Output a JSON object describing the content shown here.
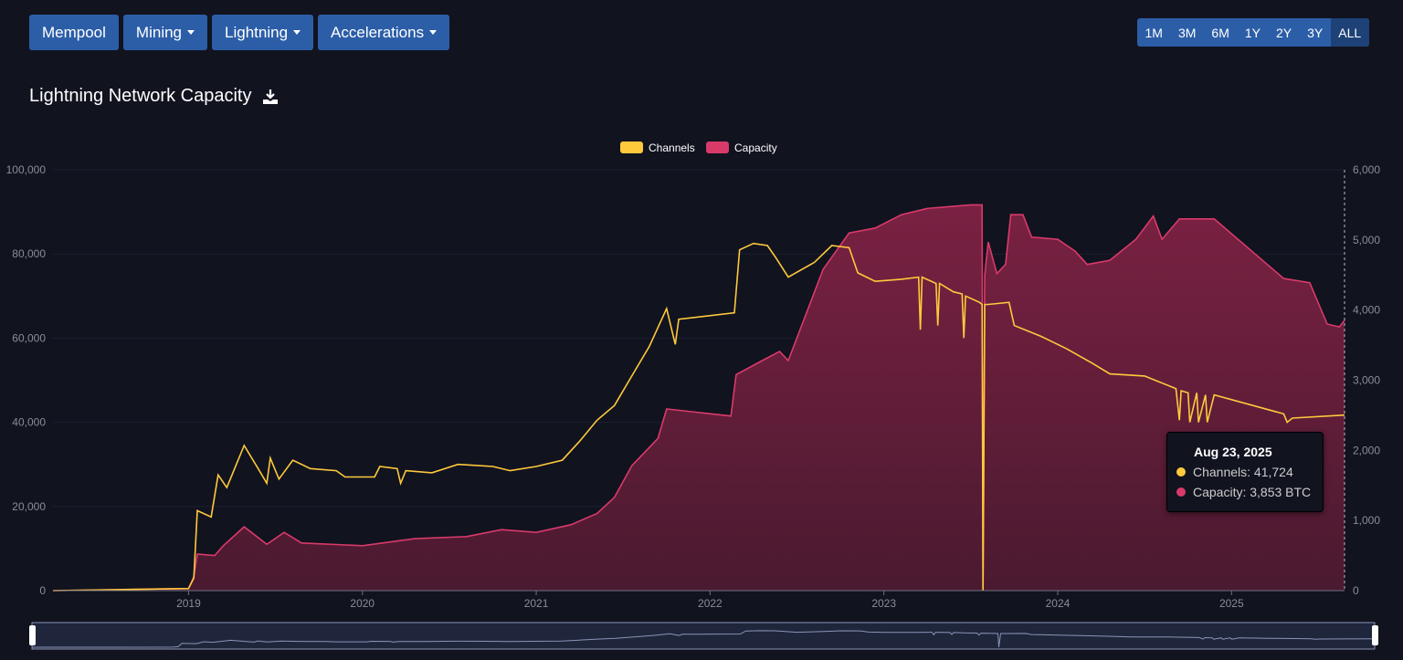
{
  "nav": {
    "buttons": [
      {
        "label": "Mempool",
        "dropdown": false
      },
      {
        "label": "Mining",
        "dropdown": true
      },
      {
        "label": "Lightning",
        "dropdown": true
      },
      {
        "label": "Accelerations",
        "dropdown": true
      }
    ]
  },
  "range": {
    "options": [
      "1M",
      "3M",
      "6M",
      "1Y",
      "2Y",
      "3Y",
      "ALL"
    ],
    "active": "ALL"
  },
  "title": "Lightning Network Capacity",
  "tooltip": {
    "date": "Aug 23, 2025",
    "channels": "Channels: 41,724",
    "capacity": "Capacity: 3,853 BTC"
  },
  "colors": {
    "channels": "#ffc93c",
    "capacity": "#d93a6a",
    "area_top": "#7a2142",
    "area_bottom": "#4a1a30"
  },
  "chart_data": {
    "type": "line",
    "title": "Lightning Network Capacity",
    "legend": [
      "Channels",
      "Capacity"
    ],
    "legend_position": "top-center",
    "xlim": [
      2018.22,
      2025.65
    ],
    "x_ticks": [
      "2019",
      "2020",
      "2021",
      "2022",
      "2023",
      "2024",
      "2025"
    ],
    "y_left": {
      "ticks": [
        "0",
        "20,000",
        "40,000",
        "60,000",
        "80,000",
        "100,000"
      ],
      "ylim": [
        0,
        100000
      ]
    },
    "y_right": {
      "ticks": [
        "0",
        "1,000",
        "2,000",
        "3,000",
        "4,000",
        "5,000",
        "6,000"
      ],
      "ylim": [
        0,
        6000
      ]
    },
    "series": [
      {
        "name": "Channels",
        "axis": "left",
        "type": "line",
        "x": [
          2018.22,
          2019.0,
          2019.03,
          2019.05,
          2019.13,
          2019.17,
          2019.22,
          2019.32,
          2019.4,
          2019.45,
          2019.47,
          2019.52,
          2019.6,
          2019.7,
          2019.85,
          2019.9,
          2020.07,
          2020.1,
          2020.2,
          2020.22,
          2020.25,
          2020.4,
          2020.55,
          2020.75,
          2020.85,
          2021.0,
          2021.15,
          2021.25,
          2021.35,
          2021.45,
          2021.55,
          2021.65,
          2021.75,
          2021.8,
          2021.82,
          2022.14,
          2022.17,
          2022.25,
          2022.33,
          2022.38,
          2022.45,
          2022.6,
          2022.7,
          2022.8,
          2022.85,
          2022.95,
          2023.1,
          2023.2,
          2023.21,
          2023.22,
          2023.3,
          2023.31,
          2023.32,
          2023.4,
          2023.45,
          2023.46,
          2023.47,
          2023.55,
          2023.565,
          2023.57,
          2023.58,
          2023.6,
          2023.72,
          2023.75,
          2023.9,
          2024.05,
          2024.2,
          2024.3,
          2024.5,
          2024.68,
          2024.7,
          2024.71,
          2024.75,
          2024.76,
          2024.8,
          2024.81,
          2024.85,
          2024.86,
          2024.9,
          2025.3,
          2025.32,
          2025.35,
          2025.65
        ],
        "values": [
          0,
          500,
          3000,
          19000,
          17500,
          27500,
          24500,
          34500,
          29000,
          25500,
          31500,
          26500,
          31000,
          29000,
          28500,
          27000,
          27000,
          29500,
          29000,
          25500,
          28500,
          28000,
          30000,
          29500,
          28500,
          29500,
          31000,
          35500,
          40500,
          44000,
          51000,
          58000,
          67000,
          58500,
          64500,
          66000,
          81000,
          82500,
          82000,
          79000,
          74500,
          78000,
          82000,
          81500,
          75500,
          73500,
          74000,
          74500,
          62000,
          74500,
          73000,
          63000,
          73000,
          71000,
          70500,
          60000,
          70000,
          68500,
          68000,
          0,
          68000,
          68000,
          68500,
          63000,
          60500,
          57500,
          54000,
          51500,
          51000,
          48000,
          40500,
          47500,
          47000,
          40000,
          47000,
          40000,
          46500,
          40000,
          46500,
          42000,
          40000,
          41000,
          41724
        ]
      },
      {
        "name": "Capacity",
        "axis": "right",
        "type": "area",
        "unit": "BTC",
        "x": [
          2018.22,
          2019.0,
          2019.03,
          2019.05,
          2019.15,
          2019.2,
          2019.32,
          2019.45,
          2019.55,
          2019.65,
          2020.0,
          2020.3,
          2020.6,
          2020.8,
          2021.0,
          2021.2,
          2021.35,
          2021.45,
          2021.55,
          2021.7,
          2021.75,
          2022.12,
          2022.15,
          2022.3,
          2022.4,
          2022.45,
          2022.65,
          2022.8,
          2022.95,
          2023.1,
          2023.25,
          2023.5,
          2023.55,
          2023.565,
          2023.57,
          2023.58,
          2023.6,
          2023.65,
          2023.7,
          2023.73,
          2023.8,
          2023.85,
          2024.0,
          2024.1,
          2024.17,
          2024.3,
          2024.45,
          2024.55,
          2024.6,
          2024.7,
          2024.9,
          2025.3,
          2025.45,
          2025.55,
          2025.62,
          2025.65
        ],
        "values": [
          0,
          30,
          200,
          520,
          500,
          640,
          910,
          660,
          830,
          680,
          640,
          740,
          770,
          870,
          830,
          940,
          1100,
          1330,
          1780,
          2170,
          2590,
          2490,
          3080,
          3280,
          3410,
          3280,
          4580,
          5100,
          5170,
          5360,
          5450,
          5500,
          5500,
          5500,
          0,
          4500,
          4970,
          4520,
          4650,
          5360,
          5360,
          5040,
          5010,
          4840,
          4650,
          4710,
          5010,
          5340,
          5010,
          5300,
          5300,
          4450,
          4390,
          3800,
          3760,
          3853
        ]
      }
    ]
  }
}
